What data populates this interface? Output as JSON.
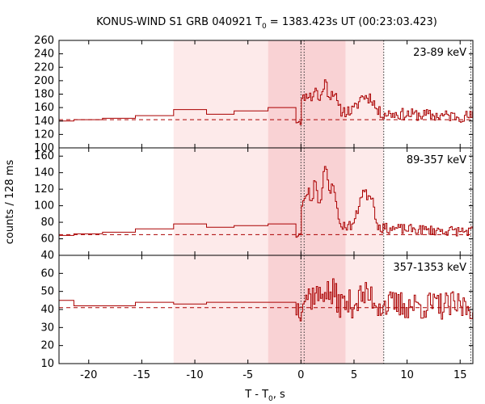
{
  "chart_data": {
    "type": "line",
    "title_prefix": "KONUS-WIND S1 GRB 040921 T",
    "title_sub": "0",
    "title_suffix": " = 1383.423s UT (00:23:03.423)",
    "xlabel_prefix": "T - T",
    "xlabel_sub": "0",
    "xlabel_suffix": ", s",
    "ylabel": "counts / 128 ms",
    "xlim": [
      -22.8,
      16.2
    ],
    "xticks": [
      -20,
      -15,
      -10,
      -5,
      0,
      5,
      10,
      15
    ],
    "colors": {
      "curve": "#aa0000",
      "shade_light": "#fdeaea",
      "shade_dark": "#f9d2d4",
      "background_line": "#aa0000"
    },
    "shaded_intervals": [
      {
        "range": [
          -12.0,
          -3.1
        ],
        "shade": "light"
      },
      {
        "range": [
          -3.1,
          4.2
        ],
        "shade": "dark"
      },
      {
        "range": [
          4.2,
          7.8
        ],
        "shade": "light"
      }
    ],
    "vlines": [
      0.0,
      0.3,
      7.8,
      16.0
    ],
    "panels": [
      {
        "label": "23-89 keV",
        "ylim": [
          100,
          260
        ],
        "yticks": [
          100,
          120,
          140,
          160,
          180,
          200,
          220,
          240,
          260
        ],
        "background": 142,
        "steps": [
          [
            -22.8,
            140
          ],
          [
            -21.4,
            142
          ],
          [
            -18.7,
            144
          ],
          [
            -15.6,
            148
          ],
          [
            -12.0,
            157
          ],
          [
            -8.9,
            150
          ],
          [
            -6.3,
            155
          ],
          [
            -3.1,
            160
          ],
          [
            -0.6,
            160
          ]
        ],
        "seed": 11,
        "burst_amp": 40,
        "tail_amp": 18,
        "noise": 9
      },
      {
        "label": "89-357 keV",
        "ylim": [
          40,
          170
        ],
        "yticks": [
          40,
          60,
          80,
          100,
          120,
          140,
          160
        ],
        "background": 65,
        "steps": [
          [
            -22.8,
            64
          ],
          [
            -21.4,
            66
          ],
          [
            -18.7,
            68
          ],
          [
            -15.6,
            72
          ],
          [
            -12.0,
            78
          ],
          [
            -8.9,
            74
          ],
          [
            -6.3,
            76
          ],
          [
            -3.1,
            78
          ],
          [
            -0.6,
            78
          ]
        ],
        "seed": 23,
        "burst_amp": 70,
        "tail_amp": 15,
        "noise": 6
      },
      {
        "label": "357-1353 keV",
        "ylim": [
          10,
          70
        ],
        "yticks": [
          10,
          20,
          30,
          40,
          50,
          60
        ],
        "background": 41,
        "steps": [
          [
            -22.8,
            45
          ],
          [
            -21.4,
            42
          ],
          [
            -18.7,
            42
          ],
          [
            -15.6,
            44
          ],
          [
            -12.0,
            43
          ],
          [
            -8.9,
            44
          ],
          [
            -6.3,
            44
          ],
          [
            -3.1,
            44
          ],
          [
            -0.6,
            44
          ]
        ],
        "seed": 37,
        "burst_amp": 8,
        "tail_amp": 3,
        "noise": 8
      }
    ]
  }
}
